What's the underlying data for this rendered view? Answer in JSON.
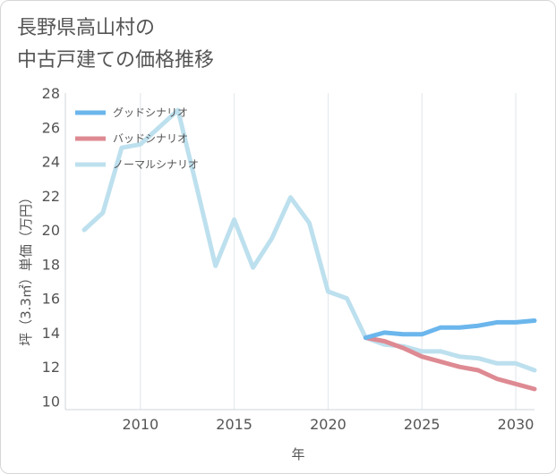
{
  "chart_data": {
    "type": "line",
    "title_lines": [
      "長野県高山村の",
      "中古戸建ての価格推移"
    ],
    "xlabel": "年",
    "ylabel": "坪（3.3㎡）単価（万円）",
    "xlim": [
      2006,
      2031
    ],
    "ylim": [
      9.5,
      28
    ],
    "x_ticks": [
      2010,
      2015,
      2020,
      2025,
      2030
    ],
    "y_ticks": [
      10,
      12,
      14,
      16,
      18,
      20,
      22,
      24,
      26,
      28
    ],
    "grid": "vertical lines at x ticks",
    "legend_position": "top-left",
    "series": [
      {
        "name": "ノーマルシナリオ",
        "color": "#bde0ee",
        "points": [
          [
            2007,
            20.0
          ],
          [
            2008,
            21.0
          ],
          [
            2009,
            24.8
          ],
          [
            2010,
            25.0
          ],
          [
            2011,
            26.0
          ],
          [
            2012,
            27.0
          ],
          [
            2013,
            22.5
          ],
          [
            2014,
            17.9
          ],
          [
            2015,
            20.6
          ],
          [
            2016,
            17.8
          ],
          [
            2017,
            19.5
          ],
          [
            2018,
            21.9
          ],
          [
            2019,
            20.4
          ],
          [
            2020,
            16.4
          ],
          [
            2021,
            16.0
          ],
          [
            2022,
            13.7
          ],
          [
            2023,
            13.3
          ],
          [
            2024,
            13.2
          ],
          [
            2025,
            12.9
          ],
          [
            2026,
            12.9
          ],
          [
            2027,
            12.6
          ],
          [
            2028,
            12.5
          ],
          [
            2029,
            12.2
          ],
          [
            2030,
            12.2
          ],
          [
            2031,
            11.8
          ]
        ]
      },
      {
        "name": "バッドシナリオ",
        "color": "#de8a92",
        "points": [
          [
            2022,
            13.7
          ],
          [
            2023,
            13.5
          ],
          [
            2024,
            13.1
          ],
          [
            2025,
            12.6
          ],
          [
            2026,
            12.3
          ],
          [
            2027,
            12.0
          ],
          [
            2028,
            11.8
          ],
          [
            2029,
            11.3
          ],
          [
            2030,
            11.0
          ],
          [
            2031,
            10.7
          ]
        ]
      },
      {
        "name": "グッドシナリオ",
        "color": "#6bb6ec",
        "points": [
          [
            2022,
            13.7
          ],
          [
            2023,
            14.0
          ],
          [
            2024,
            13.9
          ],
          [
            2025,
            13.9
          ],
          [
            2026,
            14.3
          ],
          [
            2027,
            14.3
          ],
          [
            2028,
            14.4
          ],
          [
            2029,
            14.6
          ],
          [
            2030,
            14.6
          ],
          [
            2031,
            14.7
          ]
        ]
      }
    ],
    "legend": [
      {
        "name": "グッドシナリオ",
        "color": "#6bb6ec"
      },
      {
        "name": "バッドシナリオ",
        "color": "#de8a92"
      },
      {
        "name": "ノーマルシナリオ",
        "color": "#bde0ee"
      }
    ]
  }
}
